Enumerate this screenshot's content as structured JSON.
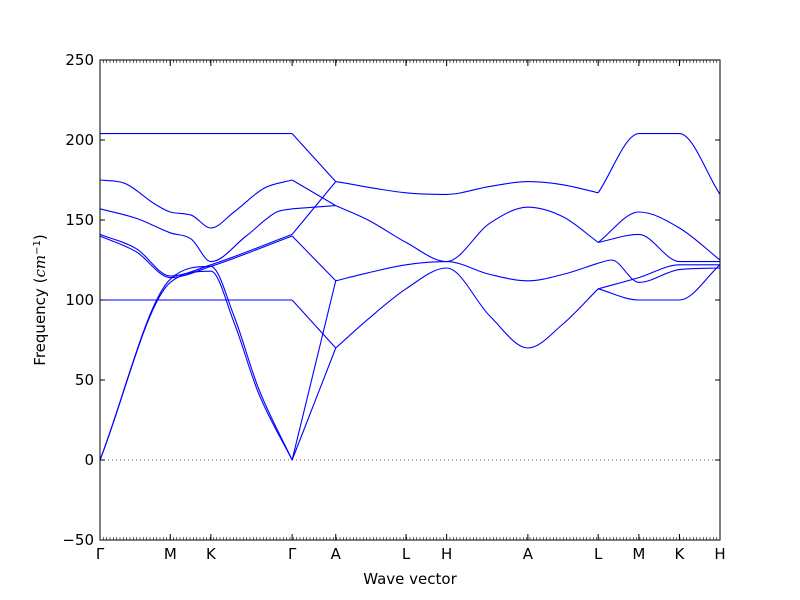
{
  "chart_data": {
    "type": "line",
    "title": "",
    "xlabel": "Wave vector",
    "ylabel": "Frequency",
    "ylabel_unit": "cm",
    "ylabel_unit_exp": "−1",
    "ylim": [
      -50,
      250
    ],
    "yticks": [
      -50,
      0,
      50,
      100,
      150,
      200,
      250
    ],
    "zero_line": "dotted",
    "grid": false,
    "legend": "none",
    "colors": {
      "bands": "#0000ff",
      "axes": "#000000",
      "zero_line": "#555555"
    },
    "path_labels": [
      "Γ",
      "M",
      "K",
      "Γ",
      "A",
      "L",
      "H",
      "A",
      "L",
      "M",
      "K",
      "H"
    ],
    "path_positions": [
      0,
      0.577,
      0.91,
      1.577,
      1.935,
      2.512,
      2.845,
      3.512,
      4.089,
      4.423,
      4.756,
      5.089
    ],
    "x_range": [
      0,
      5.089
    ],
    "series": [
      {
        "x": [
          0,
          0.577,
          0.91,
          1.577
        ],
        "y": [
          204,
          204,
          204,
          204
        ]
      },
      {
        "x": [
          0,
          0.2,
          0.45,
          0.577,
          0.75,
          0.91,
          1.1,
          1.35,
          1.577
        ],
        "y": [
          175,
          173,
          160,
          155,
          153,
          145,
          155,
          170,
          175
        ]
      },
      {
        "x": [
          0,
          0.3,
          0.577,
          0.75,
          0.91,
          1.2,
          1.45,
          1.577
        ],
        "y": [
          157,
          151,
          142,
          138,
          124,
          140,
          155,
          157
        ]
      },
      {
        "x": [
          0,
          0.3,
          0.577,
          0.91,
          1.577
        ],
        "y": [
          141,
          132,
          115,
          122,
          141
        ]
      },
      {
        "x": [
          0,
          0.3,
          0.577,
          0.91,
          1.577
        ],
        "y": [
          140,
          130,
          114,
          121,
          140
        ]
      },
      {
        "x": [
          0,
          0.577,
          0.91,
          1.577
        ],
        "y": [
          100,
          100,
          100,
          100
        ]
      },
      {
        "x": [
          0,
          0.577,
          0.91,
          1.1,
          1.3,
          1.577
        ],
        "y": [
          0,
          113,
          121,
          90,
          45,
          0
        ]
      },
      {
        "x": [
          0,
          0.577,
          0.91,
          1.1,
          1.3,
          1.577
        ],
        "y": [
          0,
          111,
          118,
          86,
          42,
          0
        ]
      },
      {
        "x": [
          1.577,
          1.935
        ],
        "y": [
          204,
          174
        ]
      },
      {
        "x": [
          1.577,
          1.935
        ],
        "y": [
          175,
          159
        ]
      },
      {
        "x": [
          1.577,
          1.935
        ],
        "y": [
          157,
          159
        ]
      },
      {
        "x": [
          1.577,
          1.935
        ],
        "y": [
          141,
          174
        ]
      },
      {
        "x": [
          1.577,
          1.935
        ],
        "y": [
          140,
          112
        ]
      },
      {
        "x": [
          1.577,
          1.935
        ],
        "y": [
          100,
          70
        ]
      },
      {
        "x": [
          1.577,
          1.935
        ],
        "y": [
          0,
          112
        ]
      },
      {
        "x": [
          1.577,
          1.935
        ],
        "y": [
          0,
          70
        ]
      },
      {
        "x": [
          1.935,
          2.512,
          2.845,
          3.2,
          3.512,
          3.8,
          4.089
        ],
        "y": [
          174,
          167,
          166,
          171,
          174,
          172,
          167
        ]
      },
      {
        "x": [
          1.935,
          2.2,
          2.512,
          2.845,
          3.2,
          3.512,
          3.8,
          4.089
        ],
        "y": [
          159,
          150,
          136,
          124,
          148,
          158,
          152,
          136
        ]
      },
      {
        "x": [
          1.935,
          2.2,
          2.512,
          2.845,
          3.2,
          3.512,
          3.8,
          4.089
        ],
        "y": [
          112,
          117,
          122,
          124,
          116,
          112,
          116,
          123
        ]
      },
      {
        "x": [
          1.935,
          2.2,
          2.512,
          2.845,
          3.2,
          3.512,
          3.8,
          4.089
        ],
        "y": [
          70,
          88,
          107,
          120,
          90,
          70,
          85,
          107
        ]
      },
      {
        "x": [
          4.089,
          4.423,
          4.756,
          5.089
        ],
        "y": [
          167,
          204,
          204,
          166
        ]
      },
      {
        "x": [
          4.089,
          4.423,
          4.756,
          5.089
        ],
        "y": [
          136,
          155,
          145,
          125
        ]
      },
      {
        "x": [
          4.089,
          4.423,
          4.756,
          5.089
        ],
        "y": [
          136,
          141,
          124,
          124
        ]
      },
      {
        "x": [
          4.089,
          4.2,
          4.423,
          4.756,
          5.089
        ],
        "y": [
          123,
          125,
          111,
          119,
          120
        ]
      },
      {
        "x": [
          4.089,
          4.423,
          4.756,
          5.089
        ],
        "y": [
          107,
          114,
          122,
          122
        ]
      },
      {
        "x": [
          4.089,
          4.423,
          4.756,
          5.089
        ],
        "y": [
          107,
          100,
          100,
          122
        ]
      }
    ]
  }
}
